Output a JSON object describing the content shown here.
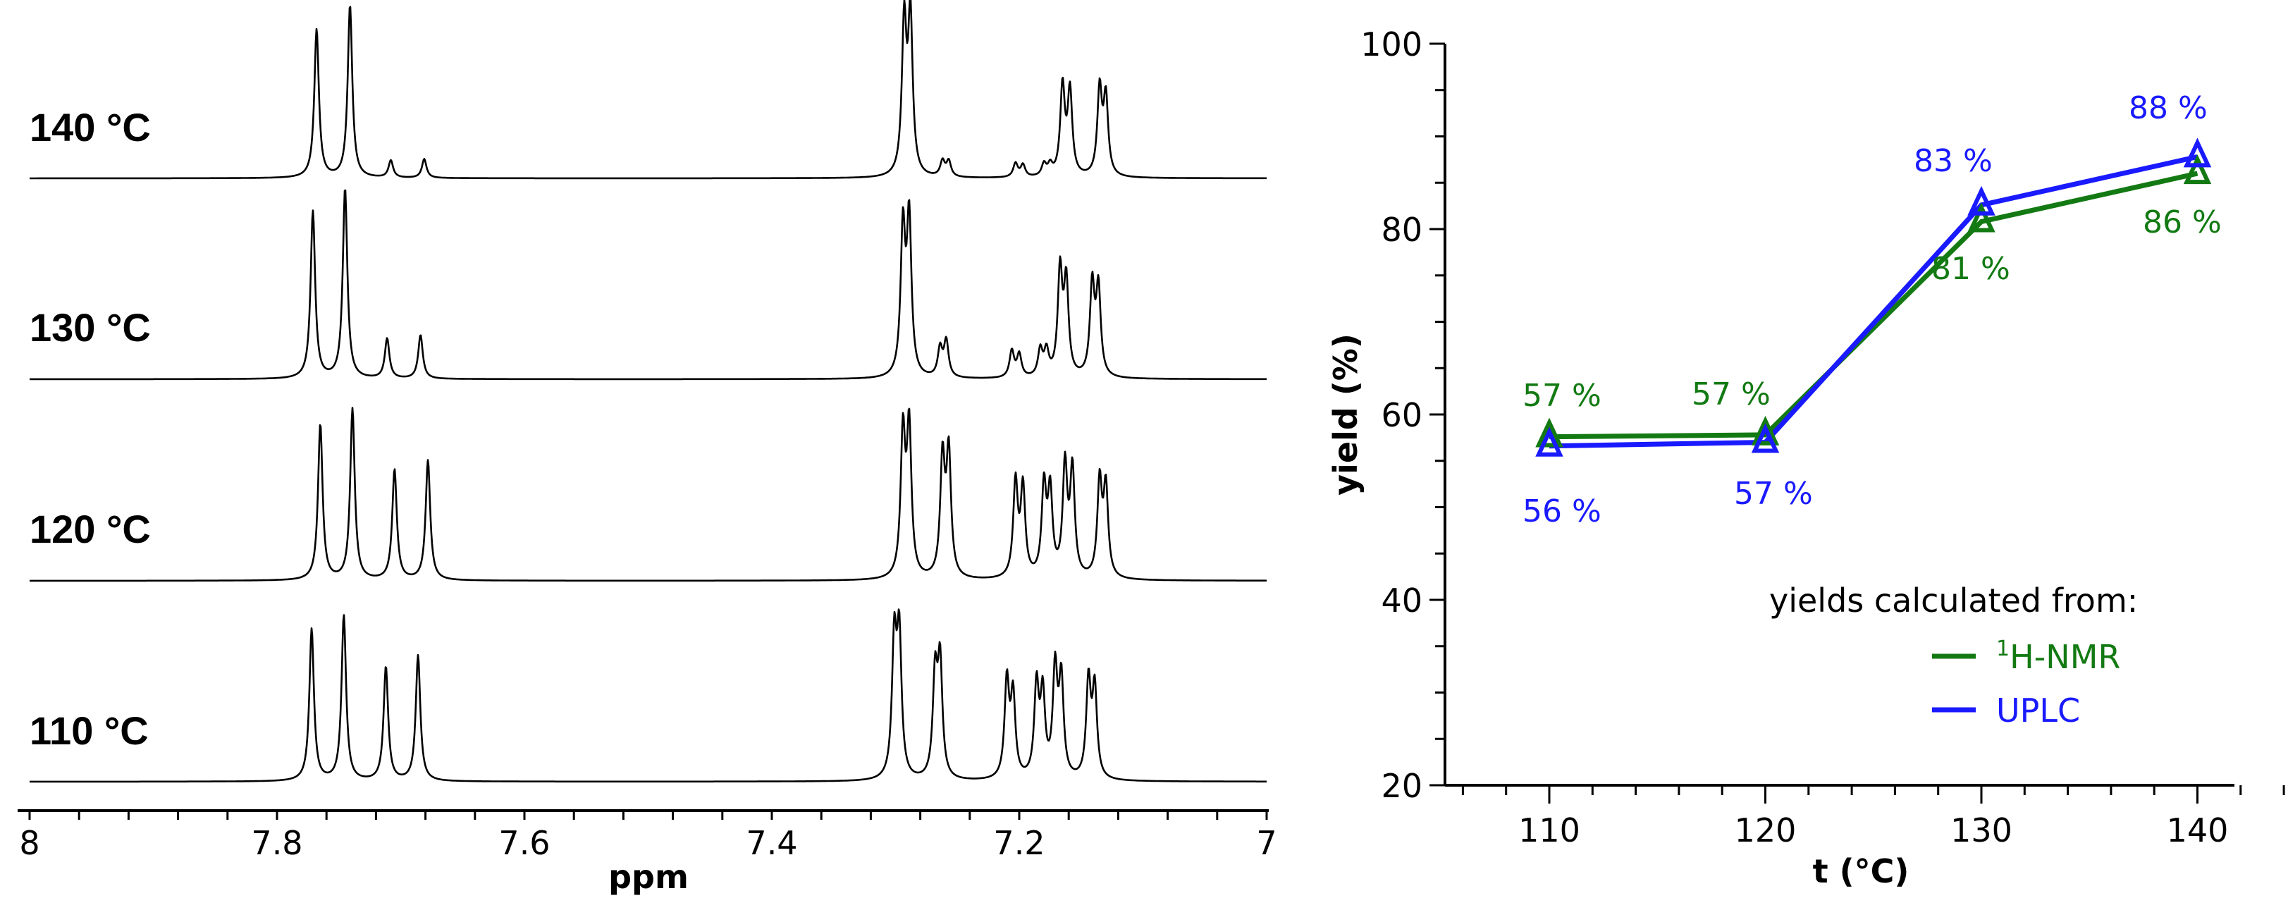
{
  "nmr_panel": {
    "xlabel": "ppm",
    "x_ticks": [
      "8",
      "7.8",
      "7.6",
      "7.4",
      "7.2",
      "7"
    ],
    "traces": [
      {
        "label": "140 °C",
        "temp": 140
      },
      {
        "label": "130 °C",
        "temp": 130
      },
      {
        "label": "120 °C",
        "temp": 120
      },
      {
        "label": "110 °C",
        "temp": 110
      }
    ]
  },
  "yield_panel": {
    "xlabel": "t (°C)",
    "ylabel": "yield (%)",
    "x_ticks": [
      "110",
      "120",
      "130",
      "140"
    ],
    "y_ticks": [
      "20",
      "40",
      "60",
      "80",
      "100"
    ],
    "legend_title": "yields calculated from:",
    "legend": [
      {
        "sup": "1",
        "label": "H-NMR",
        "color": "#137a13"
      },
      {
        "sup": "",
        "label": "UPLC",
        "color": "#1a1aff"
      }
    ],
    "data_labels": {
      "nmr": [
        "57 %",
        "57 %",
        "81 %",
        "86 %"
      ],
      "uplc": [
        "56 %",
        "57 %",
        "83 %",
        "88 %"
      ]
    }
  },
  "chart_data": [
    {
      "type": "line",
      "title": "",
      "xlabel": "ppm",
      "ylabel": "",
      "xlim": [
        8,
        7
      ],
      "x_ticks": [
        8,
        7.8,
        7.6,
        7.4,
        7.2,
        7
      ],
      "series": [
        {
          "name": "140 °C",
          "peaks_ppm": [
            7.768,
            7.741,
            7.708,
            7.681,
            7.293,
            7.288,
            7.262,
            7.257,
            7.203,
            7.197,
            7.18,
            7.175,
            7.165,
            7.159,
            7.135,
            7.13
          ],
          "heights": [
            0.86,
            1.0,
            0.1,
            0.11,
            0.88,
            0.91,
            0.09,
            0.09,
            0.08,
            0.07,
            0.07,
            0.06,
            0.52,
            0.49,
            0.5,
            0.45
          ]
        },
        {
          "name": "130 °C",
          "peaks_ppm": [
            7.771,
            7.745,
            7.711,
            7.684,
            7.294,
            7.289,
            7.264,
            7.259,
            7.206,
            7.2,
            7.183,
            7.178,
            7.167,
            7.162,
            7.141,
            7.136
          ],
          "heights": [
            0.88,
            1.0,
            0.21,
            0.23,
            0.77,
            0.82,
            0.15,
            0.19,
            0.14,
            0.12,
            0.14,
            0.13,
            0.55,
            0.49,
            0.48,
            0.46
          ]
        },
        {
          "name": "120 °C",
          "peaks_ppm": [
            7.765,
            7.739,
            7.705,
            7.678,
            7.294,
            7.289,
            7.262,
            7.257,
            7.203,
            7.197,
            7.18,
            7.175,
            7.163,
            7.157,
            7.135,
            7.13
          ],
          "heights": [
            0.82,
            0.9,
            0.58,
            0.63,
            0.75,
            0.78,
            0.62,
            0.65,
            0.5,
            0.47,
            0.47,
            0.44,
            0.58,
            0.56,
            0.5,
            0.47
          ]
        },
        {
          "name": "110 °C",
          "peaks_ppm": [
            7.772,
            7.746,
            7.712,
            7.686,
            7.301,
            7.297,
            7.268,
            7.264,
            7.21,
            7.205,
            7.186,
            7.181,
            7.171,
            7.166,
            7.144,
            7.139
          ],
          "heights": [
            0.8,
            0.87,
            0.6,
            0.66,
            0.71,
            0.73,
            0.53,
            0.6,
            0.51,
            0.43,
            0.48,
            0.43,
            0.56,
            0.51,
            0.51,
            0.47
          ]
        }
      ]
    },
    {
      "type": "line",
      "title": "",
      "xlabel": "t (°C)",
      "ylabel": "yield (%)",
      "ylim": [
        20,
        100
      ],
      "xlim": [
        105,
        145
      ],
      "x": [
        110,
        120,
        130,
        140
      ],
      "series": [
        {
          "name": "1H-NMR",
          "values": [
            57,
            57,
            81,
            86
          ],
          "color": "#137a13",
          "marker": "open-triangle"
        },
        {
          "name": "UPLC",
          "values": [
            56,
            57,
            83,
            88
          ],
          "color": "#1a1aff",
          "marker": "open-triangle"
        }
      ],
      "legend_title": "yields calculated from:",
      "legend_position": "lower right",
      "grid": false
    }
  ]
}
